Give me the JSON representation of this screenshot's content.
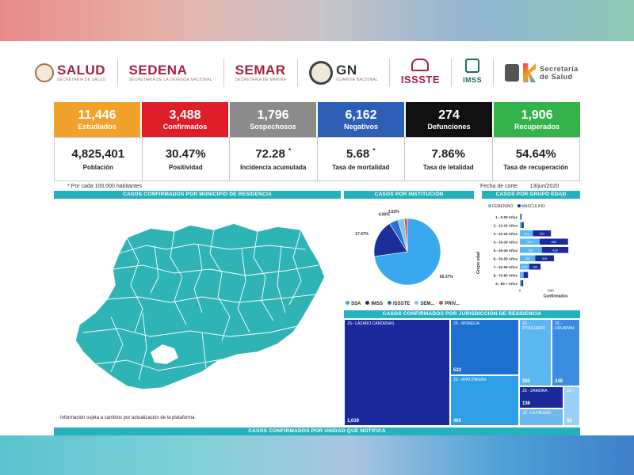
{
  "logos": {
    "salud": {
      "name": "SALUD",
      "sub": "SECRETARÍA DE SALUD"
    },
    "sedena": {
      "name": "SEDENA",
      "sub": "SECRETARÍA DE LA DEFENSA NACIONAL"
    },
    "semar": {
      "name": "SEMAR",
      "sub": "SECRETARÍA DE MARINA"
    },
    "gn": {
      "name": "GN",
      "sub": "GUARDIA NACIONAL"
    },
    "issste": {
      "name": "ISSSTE"
    },
    "imss": {
      "name": "IMSS"
    },
    "ss": {
      "line1": "Secretaría",
      "line2": "de Salud"
    }
  },
  "top_stats": [
    {
      "value": "11,446",
      "label": "Estudiados",
      "color": "#f0a22a"
    },
    {
      "value": "3,488",
      "label": "Confirmados",
      "color": "#e01e2a"
    },
    {
      "value": "1,796",
      "label": "Sospechosos",
      "color": "#8b8b8b"
    },
    {
      "value": "6,162",
      "label": "Negativos",
      "color": "#2d5fb5"
    },
    {
      "value": "274",
      "label": "Defunciones",
      "color": "#111111"
    },
    {
      "value": "1,906",
      "label": "Recuperados",
      "color": "#33b34a"
    }
  ],
  "bottom_stats": [
    {
      "value": "4,825,401",
      "label": "Población",
      "mark": ""
    },
    {
      "value": "30.47%",
      "label": "Positividad",
      "mark": ""
    },
    {
      "value": "72.28",
      "label": "Incidencia acumulada",
      "mark": "*"
    },
    {
      "value": "5.68",
      "label": "Tasa de mortalidad",
      "mark": "*"
    },
    {
      "value": "7.86%",
      "label": "Tasa de letalidad",
      "mark": ""
    },
    {
      "value": "54.64%",
      "label": "Tasa de recuperación",
      "mark": ""
    }
  ],
  "footnote": "* Por cada 100,000 habitantes",
  "cutoff": {
    "label": "Fecha de corte:",
    "date": "13/jun/2020"
  },
  "headers": {
    "map": "CASOS CONFIRMADOS POR MUNICIPIO DE RESIDENCIA",
    "pie": "CASOS POR INSTITUCIÓN",
    "age": "CASOS POR GRUPO EDAD",
    "treemap": "CASOS CONFIRMADOS POR JURISDICCIÓN DE RESIDENCIA",
    "bottom": "CASOS CONFIRMADOS POR UNIDAD QUE NOTIFICA"
  },
  "map_note": "Información sujeta a cambios por actualización de la plataforma.",
  "pie": {
    "slices": [
      {
        "name": "SSA",
        "value": 69.37,
        "label": "69.37%",
        "color": "#3aa8ef"
      },
      {
        "name": "IMSS",
        "value": 17.47,
        "label": "17.47%",
        "color": "#1b2f9a"
      },
      {
        "name": "ISSSTE",
        "value": 4.09,
        "label": "4.09%",
        "color": "#2a70cc"
      },
      {
        "name": "SEM...",
        "value": 3.02,
        "label": "3.02%",
        "color": "#7ec6f2"
      },
      {
        "name": "PRIV...",
        "value": 1.4,
        "label": "",
        "color": "#d94a4a"
      }
    ]
  },
  "age": {
    "legend_f": "FEMENINO",
    "legend_m": "MASCULINO",
    "axis_label": "Grupo edad",
    "x_label": "Confirmados",
    "ticks": [
      "0",
      "500"
    ],
    "groups": [
      {
        "label": "1.- 0-09 Años",
        "f": 12,
        "m": 14,
        "f_label": "",
        "m_label": ""
      },
      {
        "label": "2.- 10-19 Años",
        "f": 30,
        "m": 32,
        "f_label": "",
        "m_label": ""
      },
      {
        "label": "3.- 20-29 Años",
        "f": 213,
        "m": 291,
        "f_label": "213",
        "m_label": "291"
      },
      {
        "label": "4.- 30-39 Años",
        "f": 322,
        "m": 459,
        "f_label": "322",
        "m_label": "459"
      },
      {
        "label": "5.- 40-49 Años",
        "f": 357,
        "m": 429,
        "f_label": "357",
        "m_label": "429"
      },
      {
        "label": "6.- 50-59 Años",
        "f": 249,
        "m": 304,
        "f_label": "249",
        "m_label": "304"
      },
      {
        "label": "7.- 60-69 Años",
        "f": 152,
        "m": 184,
        "f_label": "152",
        "m_label": "184"
      },
      {
        "label": "8.- 70-80 Años",
        "f": 60,
        "m": 72,
        "f_label": "",
        "m_label": ""
      },
      {
        "label": "9.- 80 + Años",
        "f": 25,
        "m": 28,
        "f_label": "",
        "m_label": ""
      }
    ]
  },
  "treemap": [
    {
      "name": "JS - LÁZARO CÁRDENAS",
      "value": "1,019",
      "color": "#1a2a9c"
    },
    {
      "name": "JS - MORELIA",
      "value": "522",
      "color": "#1d6fd0"
    },
    {
      "name": "JS - APATZINGÁN",
      "value": "465",
      "color": "#2e9fe6"
    },
    {
      "name": "JS - ZITÁCUARO",
      "value": "380",
      "color": "#5ab7f0"
    },
    {
      "name": "JS - URUAPAN",
      "value": "248",
      "color": "#3a8de0"
    },
    {
      "name": "JS - ZAMORA",
      "value": "136",
      "color": "#1a2a9c"
    },
    {
      "name": "JS - LA PIEDAD",
      "value": "",
      "color": "#6fb8ef"
    },
    {
      "name": "JS - ...",
      "value": "82",
      "color": "#9ad0f5"
    }
  ],
  "colors": {
    "header": "#25b1bd",
    "map_fill": "#2fb4b6",
    "map_stroke": "#ffffff"
  }
}
